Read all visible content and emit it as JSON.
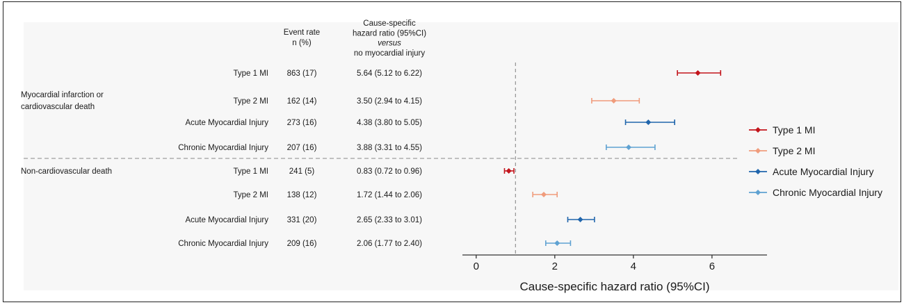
{
  "chart_data": {
    "type": "forest",
    "columns": {
      "event_rate_header": [
        "Event rate",
        "n (%)"
      ],
      "hr_header": [
        "Cause-specific",
        "hazard ratio (95%CI)",
        "versus",
        "no myocardial injury"
      ]
    },
    "groups": [
      {
        "label": [
          "Myocardial infarction or",
          "cardiovascular death"
        ]
      },
      {
        "label": [
          "Non-cardiovascular death"
        ]
      }
    ],
    "rows": [
      {
        "group": 0,
        "label": "Type 1 MI",
        "event_rate": "863 (17)",
        "hr_text": "5.64 (5.12 to 6.22)",
        "hr": 5.64,
        "lo": 5.12,
        "hi": 6.22,
        "series": 0
      },
      {
        "group": 0,
        "label": "Type 2 MI",
        "event_rate": "162 (14)",
        "hr_text": "3.50 (2.94 to 4.15)",
        "hr": 3.5,
        "lo": 2.94,
        "hi": 4.15,
        "series": 1
      },
      {
        "group": 0,
        "label": "Acute Myocardial Injury",
        "event_rate": "273 (16)",
        "hr_text": "4.38 (3.80 to 5.05)",
        "hr": 4.38,
        "lo": 3.8,
        "hi": 5.05,
        "series": 2
      },
      {
        "group": 0,
        "label": "Chronic Myocardial Injury",
        "event_rate": "207 (16)",
        "hr_text": "3.88 (3.31 to 4.55)",
        "hr": 3.88,
        "lo": 3.31,
        "hi": 4.55,
        "series": 3
      },
      {
        "group": 1,
        "label": "Type 1 MI",
        "event_rate": "241 (5)",
        "hr_text": "0.83 (0.72 to 0.96)",
        "hr": 0.83,
        "lo": 0.72,
        "hi": 0.96,
        "series": 0
      },
      {
        "group": 1,
        "label": "Type 2 MI",
        "event_rate": "138 (12)",
        "hr_text": "1.72 (1.44 to 2.06)",
        "hr": 1.72,
        "lo": 1.44,
        "hi": 2.06,
        "series": 1
      },
      {
        "group": 1,
        "label": "Acute Myocardial Injury",
        "event_rate": "331 (20)",
        "hr_text": "2.65 (2.33 to 3.01)",
        "hr": 2.65,
        "lo": 2.33,
        "hi": 3.01,
        "series": 2
      },
      {
        "group": 1,
        "label": "Chronic Myocardial Injury",
        "event_rate": "209 (16)",
        "hr_text": "2.06 (1.77 to 2.40)",
        "hr": 2.06,
        "lo": 1.77,
        "hi": 2.4,
        "series": 3
      }
    ],
    "series": [
      {
        "name": "Type 1 MI",
        "color": "#c3151c"
      },
      {
        "name": "Type 2 MI",
        "color": "#f09c7c"
      },
      {
        "name": "Acute Myocardial Injury",
        "color": "#2166ac"
      },
      {
        "name": "Chronic Myocardial Injury",
        "color": "#5fa2d2"
      }
    ],
    "xaxis": {
      "label": "Cause-specific hazard ratio (95%CI)",
      "ticks": [
        0,
        2,
        4,
        6
      ],
      "xlim": [
        -0.35,
        7.4
      ],
      "reference_line": 1
    },
    "legend": {
      "position": "right"
    },
    "grid": false
  }
}
